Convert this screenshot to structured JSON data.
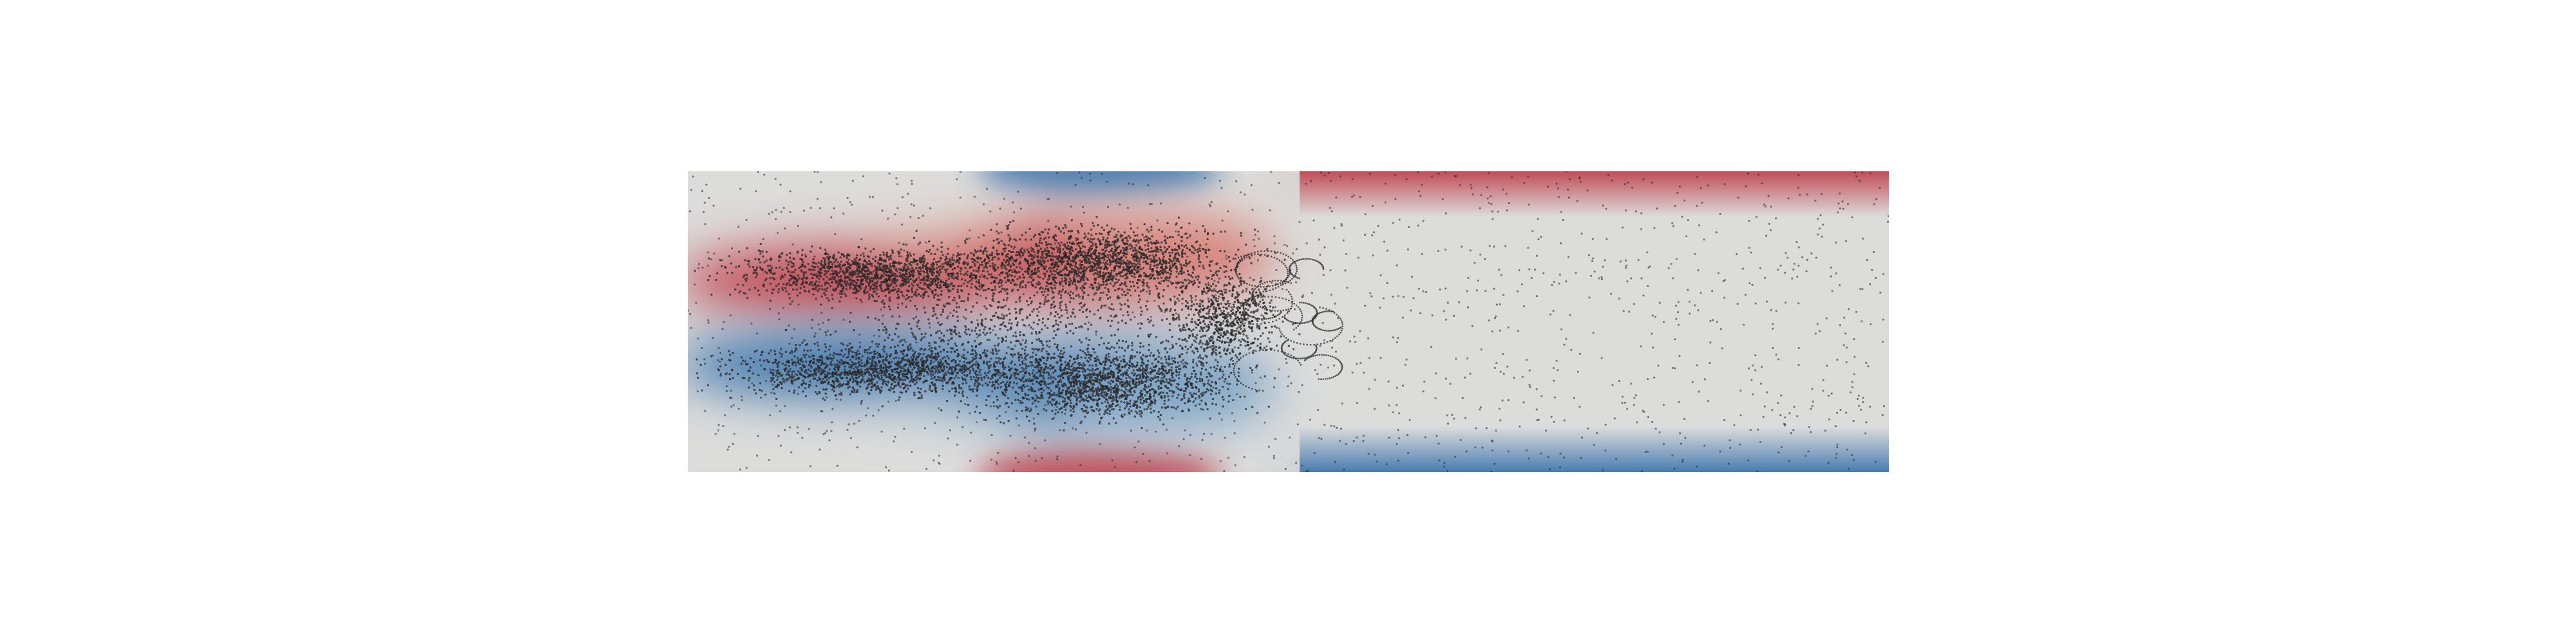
{
  "scene": {
    "description_kind": "flow-visualization",
    "colormap": {
      "positive": "#c0454f",
      "positive_light": "#e3a08e",
      "neutral": "#dcdcdb",
      "negative": "#3f78ad",
      "negative_light": "#9dbad3"
    },
    "particle_color": "#2a2a2a",
    "background_color": "#ffffff"
  }
}
